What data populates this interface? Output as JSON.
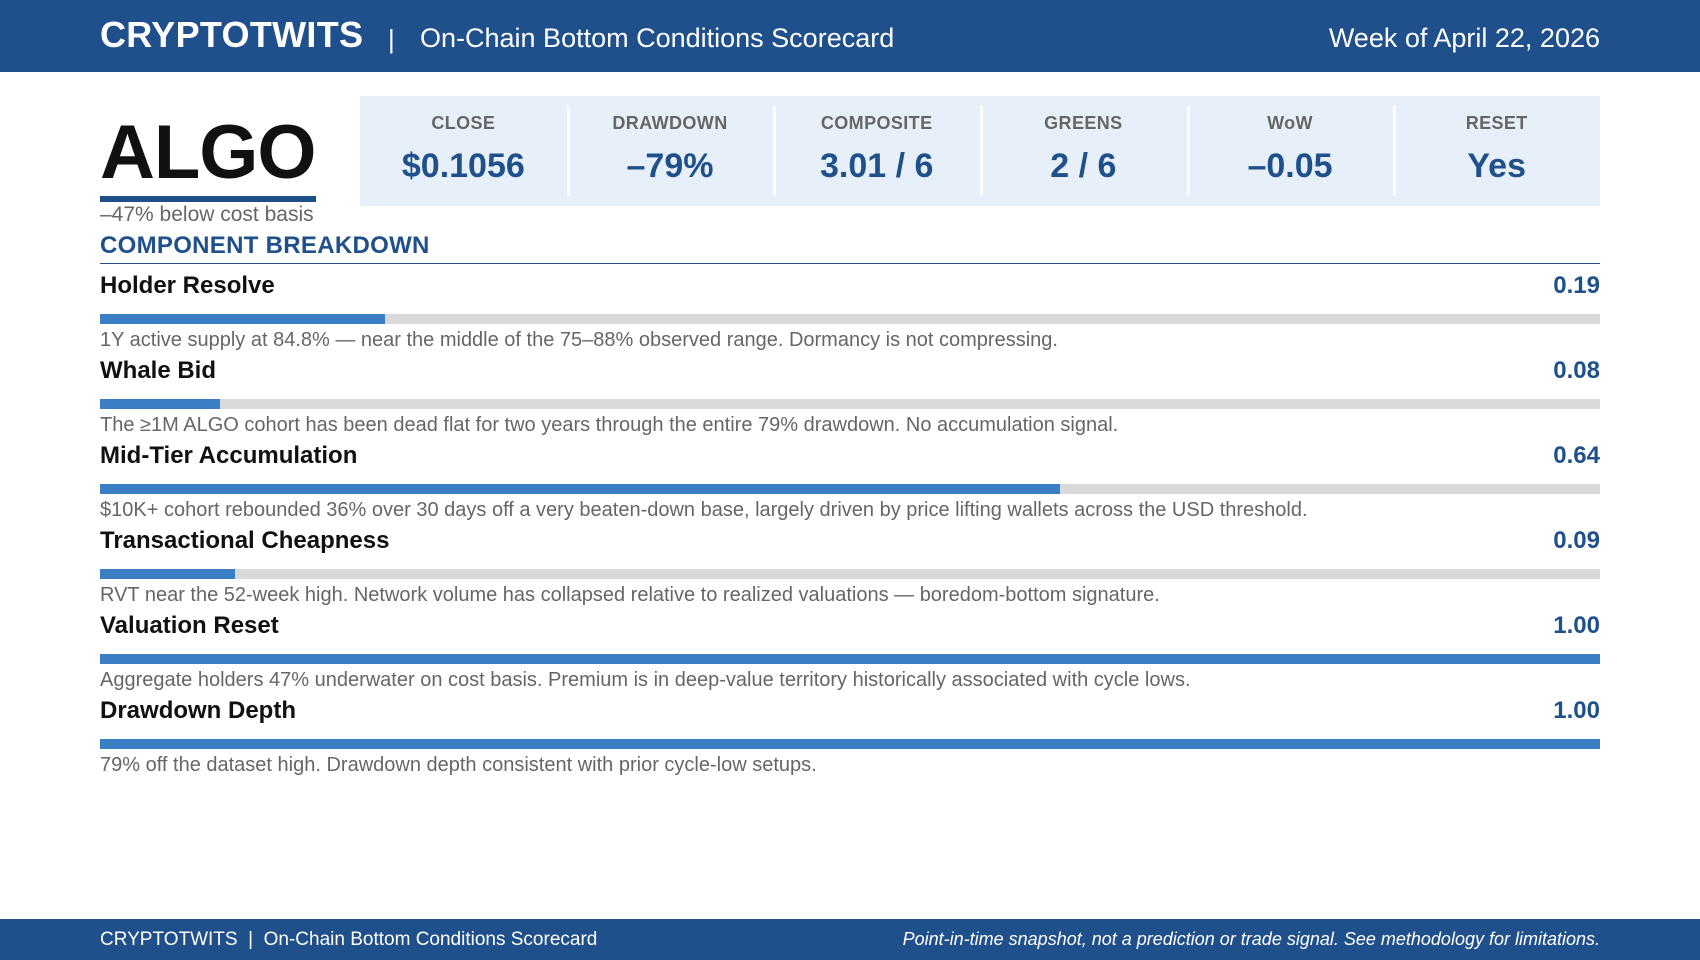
{
  "header": {
    "brand": "CRYPTOTWITS",
    "separator": "|",
    "subtitle": "On-Chain Bottom Conditions Scorecard",
    "week": "Week of April 22, 2026"
  },
  "asset": {
    "ticker": "ALGO",
    "below_cost": "–47% below cost basis"
  },
  "metrics": [
    {
      "label": "CLOSE",
      "value": "$0.1056"
    },
    {
      "label": "DRAWDOWN",
      "value": "–79%"
    },
    {
      "label": "COMPOSITE",
      "value": "3.01 / 6"
    },
    {
      "label": "GREENS",
      "value": "2 / 6"
    },
    {
      "label": "WoW",
      "value": "–0.05"
    },
    {
      "label": "RESET",
      "value": "Yes"
    }
  ],
  "breakdown": {
    "title": "COMPONENT BREAKDOWN",
    "components": [
      {
        "name": "Holder Resolve",
        "score": "0.19",
        "value": 0.19,
        "desc": "1Y active supply at 84.8% — near the middle of the 75–88% observed range. Dormancy is not compressing."
      },
      {
        "name": "Whale Bid",
        "score": "0.08",
        "value": 0.08,
        "desc": "The ≥1M ALGO cohort has been dead flat for two years through the entire 79% drawdown. No accumulation signal."
      },
      {
        "name": "Mid-Tier Accumulation",
        "score": "0.64",
        "value": 0.64,
        "desc": "$10K+ cohort rebounded 36% over 30 days off a very beaten-down base, largely driven by price lifting wallets across the USD threshold."
      },
      {
        "name": "Transactional Cheapness",
        "score": "0.09",
        "value": 0.09,
        "desc": "RVT near the 52-week high. Network volume has collapsed relative to realized valuations — boredom-bottom signature."
      },
      {
        "name": "Valuation Reset",
        "score": "1.00",
        "value": 1.0,
        "desc": "Aggregate holders 47% underwater on cost basis. Premium is in deep-value territory historically associated with cycle lows."
      },
      {
        "name": "Drawdown Depth",
        "score": "1.00",
        "value": 1.0,
        "desc": "79% off the dataset high. Drawdown depth consistent with prior cycle-low setups."
      }
    ]
  },
  "footer": {
    "left": "CRYPTOTWITS  |  On-Chain Bottom Conditions Scorecard",
    "right": "Point-in-time snapshot, not a prediction or trade signal. See methodology for limitations."
  }
}
